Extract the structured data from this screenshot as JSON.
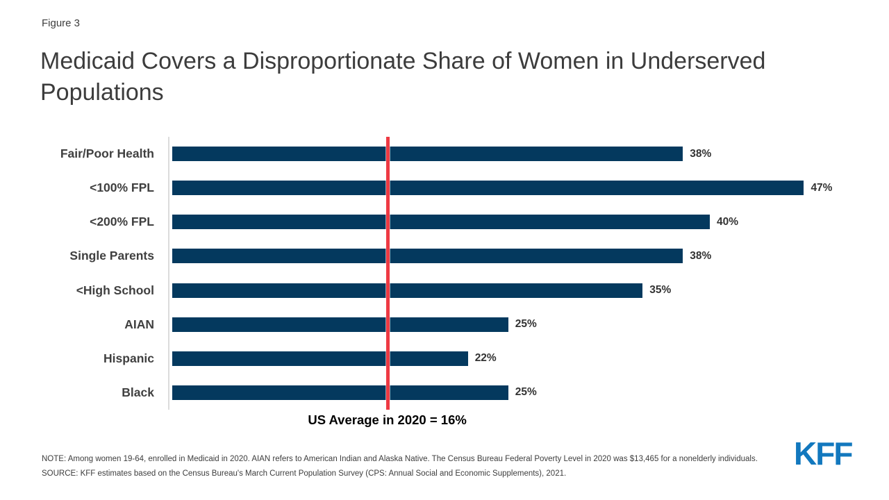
{
  "figure_label": "Figure 3",
  "title": "Medicaid Covers a Disproportionate Share of Women in Underserved Populations",
  "chart_data": {
    "type": "bar",
    "orientation": "horizontal",
    "title": "Medicaid Covers a Disproportionate Share of Women in Underserved Populations",
    "categories": [
      "Fair/Poor Health",
      "<100% FPL",
      "<200% FPL",
      "Single Parents",
      "<High School",
      "AIAN",
      "Hispanic",
      "Black"
    ],
    "values": [
      38,
      47,
      40,
      38,
      35,
      25,
      22,
      25
    ],
    "value_suffix": "%",
    "xlabel": "",
    "ylabel": "",
    "xlim": [
      0,
      50
    ],
    "grid": false,
    "legend": "none",
    "bar_color": "#04395e",
    "reference_line": {
      "value": 16,
      "color": "#ee3a43",
      "label": "US Average in 2020 = 16%"
    }
  },
  "notes": {
    "note": "NOTE: Among women 19-64, enrolled in Medicaid in 2020. AIAN refers to American Indian and Alaska Native. The Census Bureau Federal Poverty Level in 2020 was $13,465 for a nonelderly individuals.",
    "source": "SOURCE: KFF estimates based on the Census Bureau's March Current Population Survey (CPS: Annual Social and Economic Supplements), 2021."
  },
  "logo_text": "KFF",
  "colors": {
    "bar": "#04395e",
    "reference_line": "#ee3a43",
    "title_text": "#3c3c3c",
    "label_text": "#404040",
    "logo_blue": "#1278be",
    "axis_line": "#dcdcdc"
  }
}
